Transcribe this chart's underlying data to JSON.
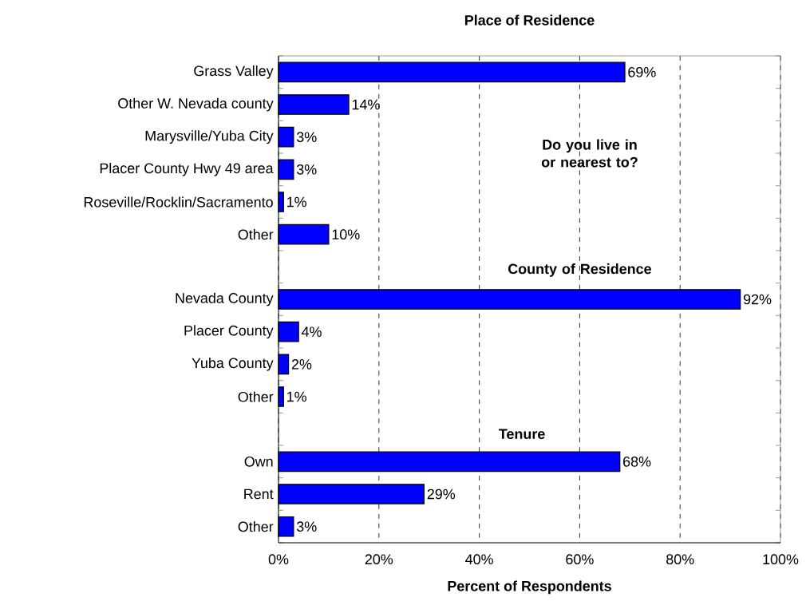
{
  "chart_data": {
    "type": "bar",
    "orientation": "horizontal",
    "title": "Place of Residence",
    "xlabel": "Percent of Respondents",
    "categories": [
      "Grass Valley",
      "Other W. Nevada county",
      "Marysville/Yuba City",
      "Placer County Hwy 49 area",
      "Roseville/Rocklin/Sacramento",
      "Other",
      null,
      "Nevada County",
      "Placer County",
      "Yuba County",
      "Other",
      null,
      "Own",
      "Rent",
      "Other"
    ],
    "values": [
      69,
      14,
      3,
      3,
      1,
      10,
      null,
      92,
      4,
      2,
      1,
      null,
      68,
      29,
      3
    ],
    "value_labels": [
      "69%",
      "14%",
      "3%",
      "3%",
      "1%",
      "10%",
      null,
      "92%",
      "4%",
      "2%",
      "1%",
      null,
      "68%",
      "29%",
      "3%"
    ],
    "color": "#0000ff",
    "xlim": [
      0,
      100
    ],
    "xticks": [
      {
        "value": 0,
        "label": "0%"
      },
      {
        "value": 20,
        "label": "20%"
      },
      {
        "value": 40,
        "label": "40%"
      },
      {
        "value": 60,
        "label": "60%"
      },
      {
        "value": 80,
        "label": "80%"
      },
      {
        "value": 100,
        "label": "100%"
      }
    ],
    "grid": "x",
    "annotations": [
      "Do you live in or nearest to?",
      "County of Residence",
      "Tenure"
    ]
  }
}
